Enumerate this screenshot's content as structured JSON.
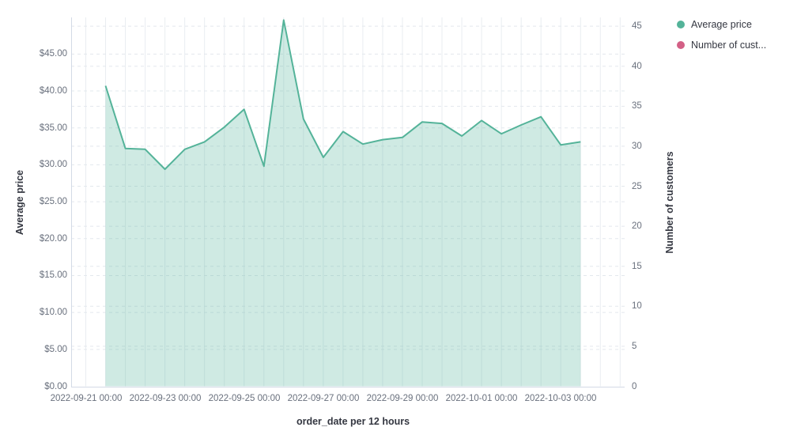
{
  "chart_data": {
    "type": "area",
    "xlabel": "order_date per 12 hours",
    "ylabel_left": "Average price",
    "ylabel_right": "Number of customers",
    "ylim_left": [
      0,
      49.96
    ],
    "ylim_right": [
      0,
      46.1
    ],
    "grid": true,
    "legend_position": "top-right",
    "x_tick_labels": [
      "2022-09-21 00:00",
      "2022-09-23 00:00",
      "2022-09-25 00:00",
      "2022-09-27 00:00",
      "2022-09-29 00:00",
      "2022-10-01 00:00",
      "2022-10-03 00:00"
    ],
    "y_left_tick_labels": [
      "$0.00",
      "$5.00",
      "$10.00",
      "$15.00",
      "$20.00",
      "$25.00",
      "$30.00",
      "$35.00",
      "$40.00",
      "$45.00"
    ],
    "y_left_tick_values": [
      0,
      5,
      10,
      15,
      20,
      25,
      30,
      35,
      40,
      45
    ],
    "y_right_tick_labels": [
      "0",
      "5",
      "10",
      "15",
      "20",
      "25",
      "30",
      "35",
      "40",
      "45"
    ],
    "y_right_tick_values": [
      0,
      5,
      10,
      15,
      20,
      25,
      30,
      35,
      40,
      45
    ],
    "x": [
      "2022-09-21 12:00",
      "2022-09-22 00:00",
      "2022-09-22 12:00",
      "2022-09-23 00:00",
      "2022-09-23 12:00",
      "2022-09-24 00:00",
      "2022-09-24 12:00",
      "2022-09-25 00:00",
      "2022-09-25 12:00",
      "2022-09-26 00:00",
      "2022-09-26 12:00",
      "2022-09-27 00:00",
      "2022-09-27 12:00",
      "2022-09-28 00:00",
      "2022-09-28 12:00",
      "2022-09-29 00:00",
      "2022-09-29 12:00",
      "2022-09-30 00:00",
      "2022-09-30 12:00",
      "2022-10-01 00:00",
      "2022-10-01 12:00",
      "2022-10-02 00:00",
      "2022-10-02 12:00",
      "2022-10-03 00:00",
      "2022-10-03 12:00"
    ],
    "series": [
      {
        "name": "Average price",
        "axis": "left",
        "color": "#54b399",
        "fill_opacity": 0.28,
        "values": [
          40.7,
          32.2,
          32.1,
          29.4,
          32.1,
          33.1,
          35.1,
          37.5,
          29.8,
          49.6,
          36.2,
          31.0,
          34.5,
          32.8,
          33.4,
          33.7,
          35.8,
          35.6,
          33.9,
          36.0,
          34.2,
          35.4,
          36.5,
          32.7,
          33.1
        ]
      },
      {
        "name": "Number of cust...",
        "axis": "right",
        "color": "#d36086",
        "values": []
      }
    ]
  },
  "legend": {
    "items": [
      {
        "label": "Average price",
        "color": "#54b399"
      },
      {
        "label": "Number of cust...",
        "color": "#d36086"
      }
    ]
  }
}
